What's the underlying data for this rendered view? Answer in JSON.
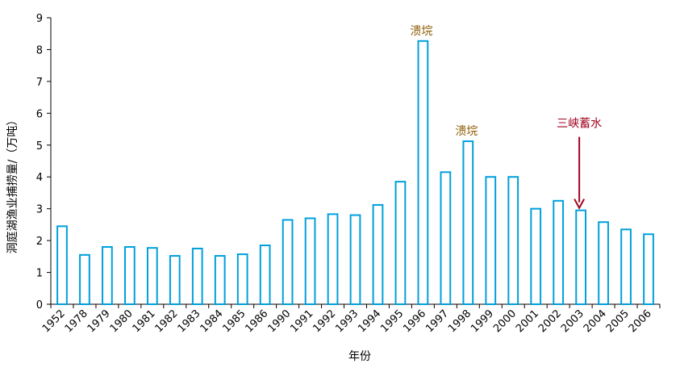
{
  "chart_data": {
    "type": "bar",
    "title": "",
    "xlabel": "年份",
    "ylabel": "洞庭湖渔业捕捞量/（万吨）",
    "ylim": [
      0,
      9
    ],
    "yticks": [
      0,
      1,
      2,
      3,
      4,
      5,
      6,
      7,
      8,
      9
    ],
    "grid": false,
    "legend": "none",
    "bar_style": "outline",
    "bar_color": "#00A0DC",
    "categories": [
      "1952",
      "1978",
      "1979",
      "1980",
      "1981",
      "1982",
      "1983",
      "1984",
      "1985",
      "1986",
      "1990",
      "1991",
      "1992",
      "1993",
      "1994",
      "1995",
      "1996",
      "1997",
      "1998",
      "1999",
      "2000",
      "2001",
      "2002",
      "2003",
      "2004",
      "2005",
      "2006"
    ],
    "values": [
      2.45,
      1.55,
      1.8,
      1.8,
      1.77,
      1.52,
      1.75,
      1.52,
      1.57,
      1.85,
      2.65,
      2.7,
      2.83,
      2.8,
      3.12,
      3.85,
      8.27,
      4.15,
      5.12,
      4.0,
      4.0,
      3.0,
      3.25,
      2.95,
      2.58,
      2.35,
      2.2
    ],
    "annotations": [
      {
        "text": "溃垸",
        "category": "1996",
        "color": "#8B5A00",
        "arrow": false
      },
      {
        "text": "溃垸",
        "category": "1998",
        "color": "#8B5A00",
        "arrow": false
      },
      {
        "text": "三峡蓄水",
        "category": "2003",
        "color": "#A0001E",
        "arrow": true
      }
    ]
  }
}
